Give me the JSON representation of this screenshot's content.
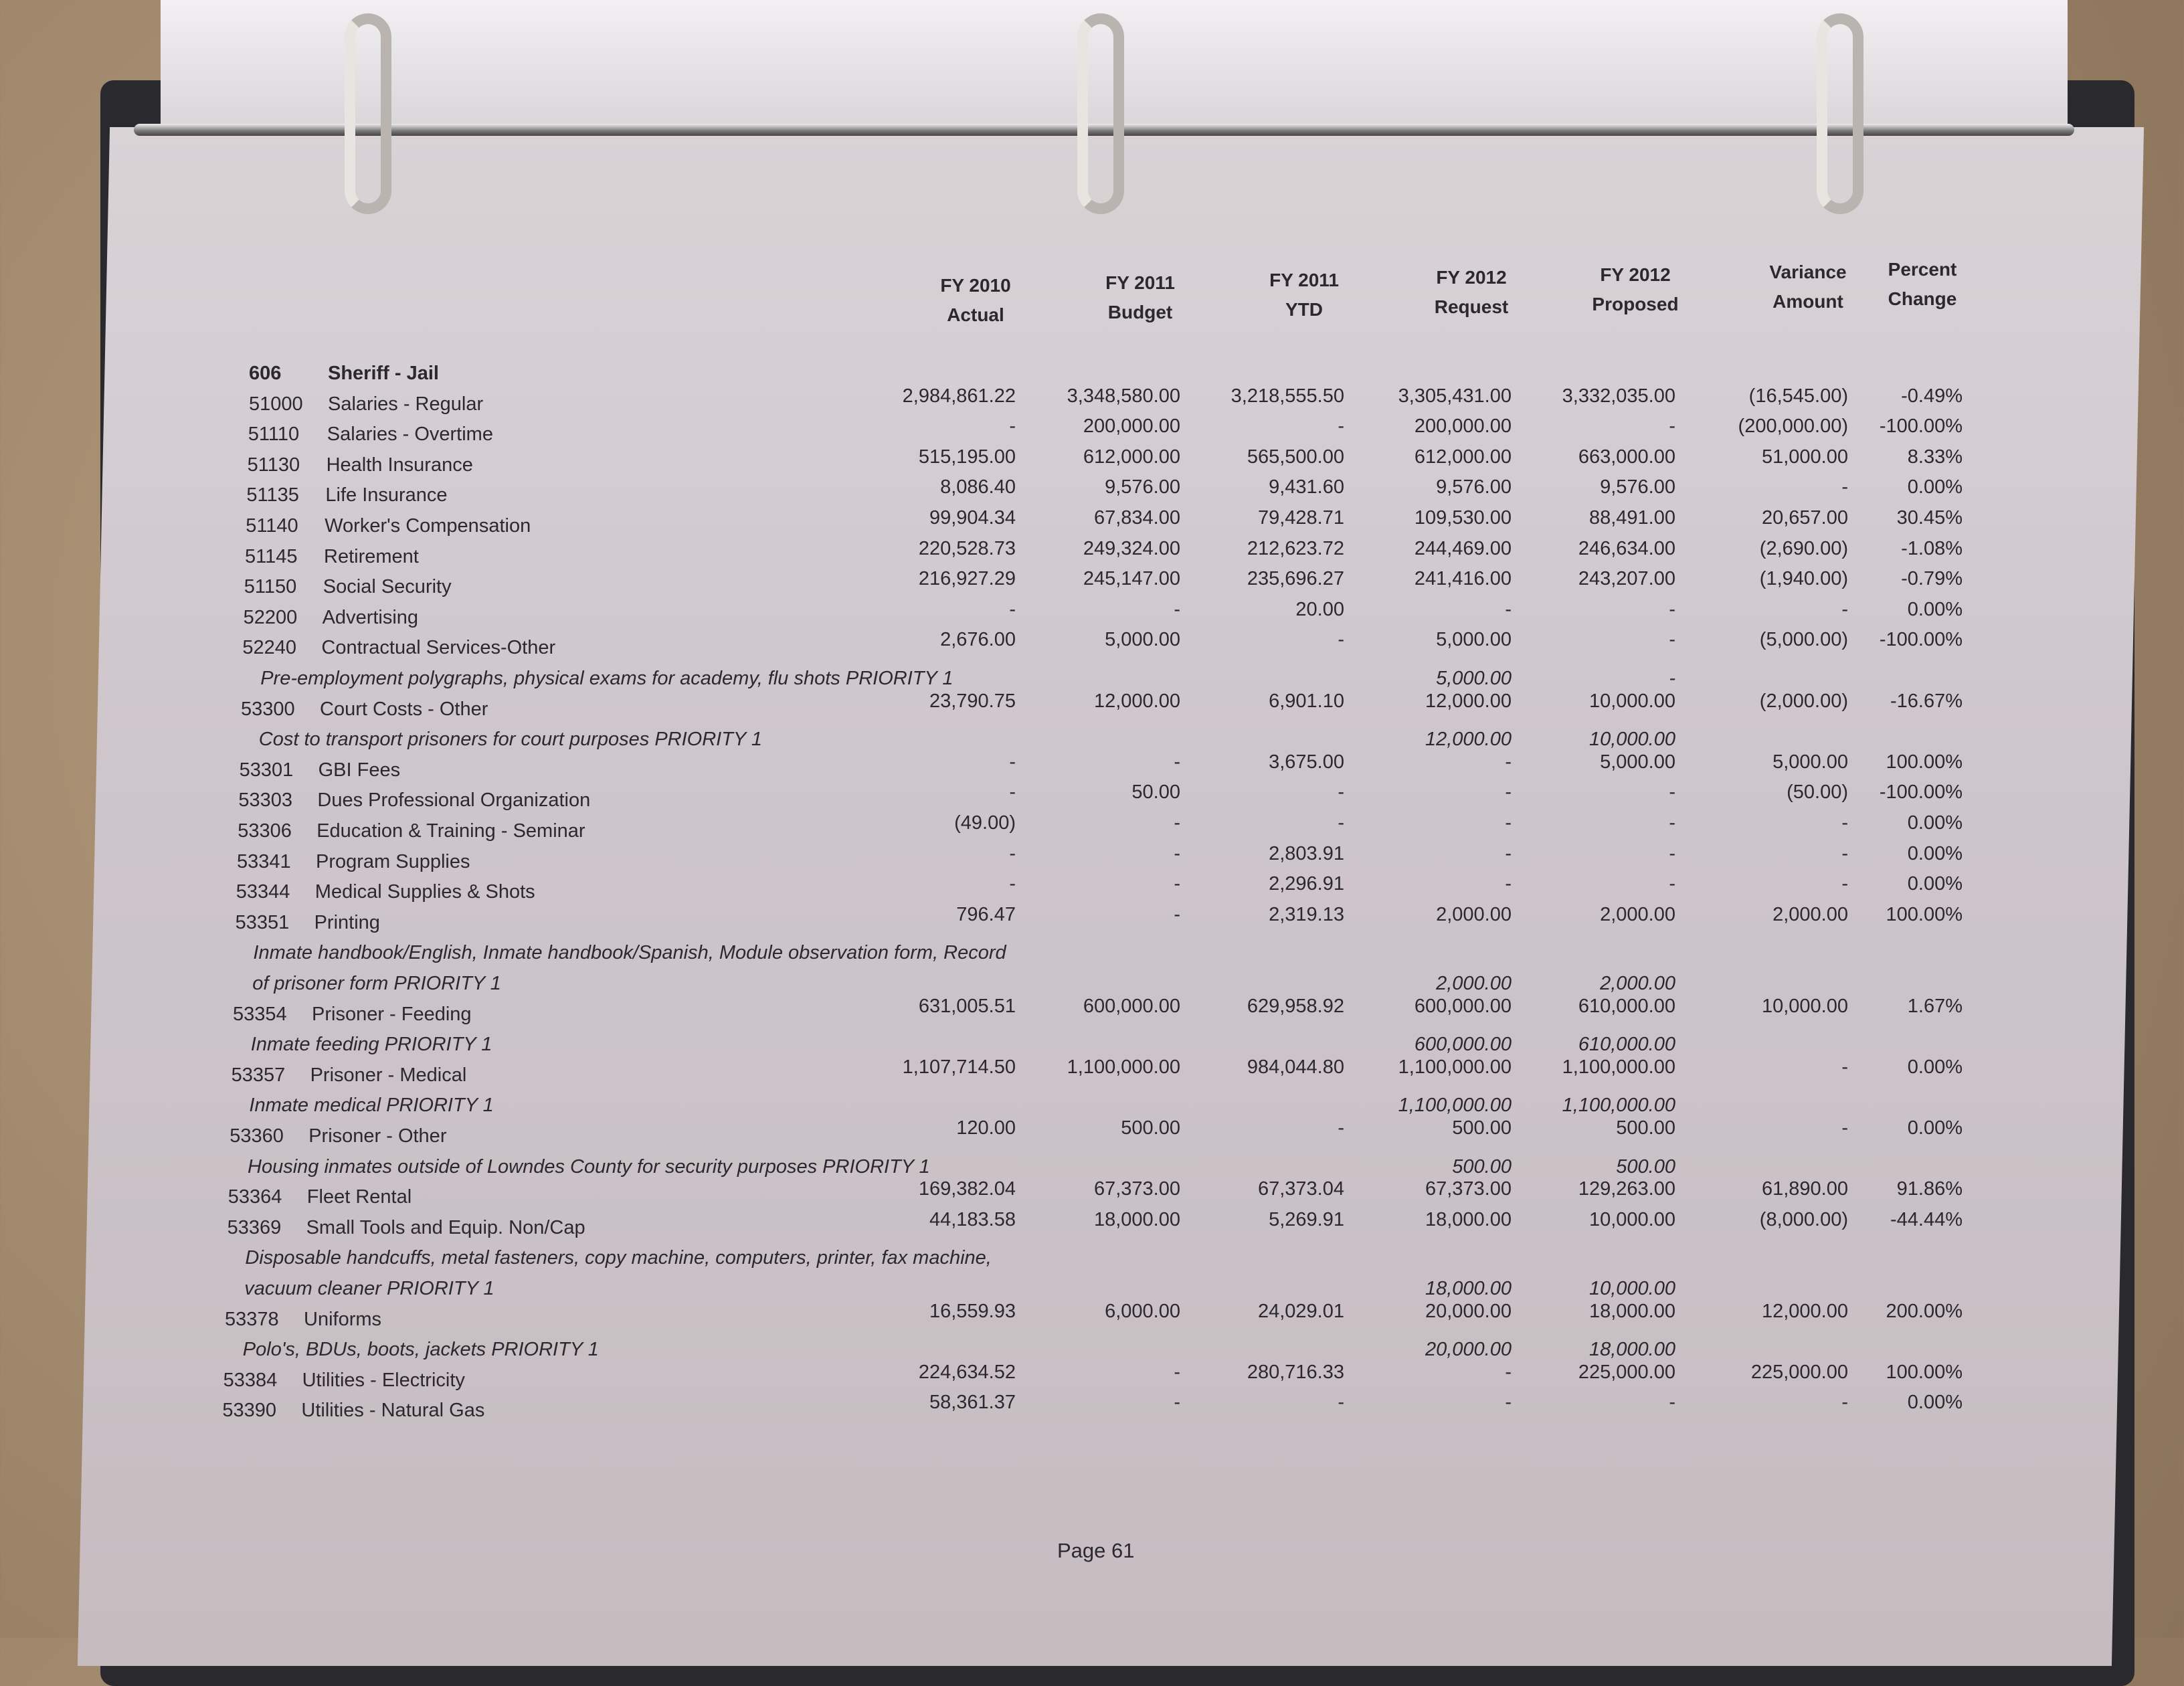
{
  "headers": [
    [
      "FY 2010",
      "Actual"
    ],
    [
      "FY 2011",
      "Budget"
    ],
    [
      "FY 2011",
      "YTD"
    ],
    [
      "FY 2012",
      "Request"
    ],
    [
      "FY 2012",
      "Proposed"
    ],
    [
      "Variance",
      "Amount"
    ],
    [
      "Percent",
      "Change"
    ]
  ],
  "section": {
    "code": "606",
    "name": "Sheriff - Jail"
  },
  "rows": [
    {
      "code": "51000",
      "name": "Salaries - Regular",
      "v": [
        "2,984,861.22",
        "3,348,580.00",
        "3,218,555.50",
        "3,305,431.00",
        "3,332,035.00",
        "(16,545.00)",
        "-0.49%"
      ]
    },
    {
      "code": "51110",
      "name": "Salaries - Overtime",
      "v": [
        "-",
        "200,000.00",
        "-",
        "200,000.00",
        "-",
        "(200,000.00)",
        "-100.00%"
      ]
    },
    {
      "code": "51130",
      "name": "Health Insurance",
      "v": [
        "515,195.00",
        "612,000.00",
        "565,500.00",
        "612,000.00",
        "663,000.00",
        "51,000.00",
        "8.33%"
      ]
    },
    {
      "code": "51135",
      "name": "Life Insurance",
      "v": [
        "8,086.40",
        "9,576.00",
        "9,431.60",
        "9,576.00",
        "9,576.00",
        "-",
        "0.00%"
      ]
    },
    {
      "code": "51140",
      "name": "Worker's Compensation",
      "v": [
        "99,904.34",
        "67,834.00",
        "79,428.71",
        "109,530.00",
        "88,491.00",
        "20,657.00",
        "30.45%"
      ]
    },
    {
      "code": "51145",
      "name": "Retirement",
      "v": [
        "220,528.73",
        "249,324.00",
        "212,623.72",
        "244,469.00",
        "246,634.00",
        "(2,690.00)",
        "-1.08%"
      ]
    },
    {
      "code": "51150",
      "name": "Social Security",
      "v": [
        "216,927.29",
        "245,147.00",
        "235,696.27",
        "241,416.00",
        "243,207.00",
        "(1,940.00)",
        "-0.79%"
      ]
    },
    {
      "code": "52200",
      "name": "Advertising",
      "v": [
        "-",
        "-",
        "20.00",
        "-",
        "-",
        "-",
        "0.00%"
      ]
    },
    {
      "code": "52240",
      "name": "Contractual Services-Other",
      "v": [
        "2,676.00",
        "5,000.00",
        "-",
        "5,000.00",
        "-",
        "(5,000.00)",
        "-100.00%"
      ]
    },
    {
      "note": "Pre-employment polygraphs, physical exams for academy, flu shots   PRIORITY 1",
      "request": "5,000.00",
      "proposed": "-"
    },
    {
      "code": "53300",
      "name": "Court Costs - Other",
      "v": [
        "23,790.75",
        "12,000.00",
        "6,901.10",
        "12,000.00",
        "10,000.00",
        "(2,000.00)",
        "-16.67%"
      ]
    },
    {
      "note": "Cost to transport prisoners for court purposes   PRIORITY 1",
      "request": "12,000.00",
      "proposed": "10,000.00"
    },
    {
      "code": "53301",
      "name": "GBI Fees",
      "v": [
        "-",
        "-",
        "3,675.00",
        "-",
        "5,000.00",
        "5,000.00",
        "100.00%"
      ]
    },
    {
      "code": "53303",
      "name": "Dues Professional Organization",
      "v": [
        "-",
        "50.00",
        "-",
        "-",
        "-",
        "(50.00)",
        "-100.00%"
      ]
    },
    {
      "code": "53306",
      "name": "Education & Training - Seminar",
      "v": [
        "(49.00)",
        "-",
        "-",
        "-",
        "-",
        "-",
        "0.00%"
      ]
    },
    {
      "code": "53341",
      "name": "Program Supplies",
      "v": [
        "-",
        "-",
        "2,803.91",
        "-",
        "-",
        "-",
        "0.00%"
      ]
    },
    {
      "code": "53344",
      "name": "Medical Supplies & Shots",
      "v": [
        "-",
        "-",
        "2,296.91",
        "-",
        "-",
        "-",
        "0.00%"
      ]
    },
    {
      "code": "53351",
      "name": "Printing",
      "v": [
        "796.47",
        "-",
        "2,319.13",
        "2,000.00",
        "2,000.00",
        "2,000.00",
        "100.00%"
      ]
    },
    {
      "note": "Inmate handbook/English, Inmate handbook/Spanish, Module observation form, Record"
    },
    {
      "note": "  of prisoner form   PRIORITY 1",
      "request": "2,000.00",
      "proposed": "2,000.00"
    },
    {
      "code": "53354",
      "name": "Prisoner - Feeding",
      "v": [
        "631,005.51",
        "600,000.00",
        "629,958.92",
        "600,000.00",
        "610,000.00",
        "10,000.00",
        "1.67%"
      ]
    },
    {
      "note": "Inmate feeding   PRIORITY 1",
      "request": "600,000.00",
      "proposed": "610,000.00"
    },
    {
      "code": "53357",
      "name": "Prisoner - Medical",
      "v": [
        "1,107,714.50",
        "1,100,000.00",
        "984,044.80",
        "1,100,000.00",
        "1,100,000.00",
        "-",
        "0.00%"
      ]
    },
    {
      "note": "Inmate medical   PRIORITY 1",
      "request": "1,100,000.00",
      "proposed": "1,100,000.00"
    },
    {
      "code": "53360",
      "name": "Prisoner - Other",
      "v": [
        "120.00",
        "500.00",
        "-",
        "500.00",
        "500.00",
        "-",
        "0.00%"
      ]
    },
    {
      "note": "Housing inmates outside of Lowndes County for security purposes   PRIORITY 1",
      "request": "500.00",
      "proposed": "500.00"
    },
    {
      "code": "53364",
      "name": "Fleet Rental",
      "v": [
        "169,382.04",
        "67,373.00",
        "67,373.04",
        "67,373.00",
        "129,263.00",
        "61,890.00",
        "91.86%"
      ]
    },
    {
      "code": "53369",
      "name": "Small Tools and Equip. Non/Cap",
      "v": [
        "44,183.58",
        "18,000.00",
        "5,269.91",
        "18,000.00",
        "10,000.00",
        "(8,000.00)",
        "-44.44%"
      ]
    },
    {
      "note": "Disposable handcuffs, metal fasteners, copy machine, computers, printer, fax machine,"
    },
    {
      "note": "  vacuum cleaner   PRIORITY 1",
      "request": "18,000.00",
      "proposed": "10,000.00"
    },
    {
      "code": "53378",
      "name": "Uniforms",
      "v": [
        "16,559.93",
        "6,000.00",
        "24,029.01",
        "20,000.00",
        "18,000.00",
        "12,000.00",
        "200.00%"
      ]
    },
    {
      "note": "Polo's, BDUs, boots, jackets   PRIORITY 1",
      "request": "20,000.00",
      "proposed": "18,000.00"
    },
    {
      "code": "53384",
      "name": "Utilities - Electricity",
      "v": [
        "224,634.52",
        "-",
        "280,716.33",
        "-",
        "225,000.00",
        "225,000.00",
        "100.00%"
      ]
    },
    {
      "code": "53390",
      "name": "Utilities - Natural Gas",
      "v": [
        "58,361.37",
        "-",
        "-",
        "-",
        "-",
        "-",
        "0.00%"
      ]
    }
  ],
  "footer": "Page 61"
}
